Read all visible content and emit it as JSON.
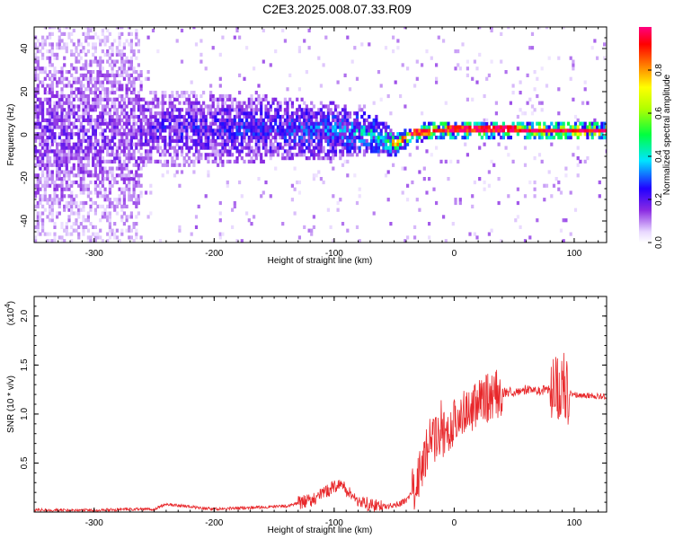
{
  "title": "C2E3.2025.008.07.33.R09",
  "chart_data": [
    {
      "type": "heatmap",
      "xlabel": "Height of straight line (km)",
      "ylabel": "Frequency (Hz)",
      "xlim": [
        -350,
        127
      ],
      "ylim": [
        -50,
        50
      ],
      "xticks": [
        -300,
        -200,
        -100,
        0,
        100
      ],
      "yticks": [
        -40,
        -20,
        0,
        20,
        40
      ],
      "colorbar": {
        "label": "Normalized spectral amplitude",
        "range": [
          0,
          1
        ],
        "ticks": [
          "0.0",
          "0.2",
          "0.4",
          "0.6",
          "0.8"
        ],
        "tick_values": [
          0,
          0.2,
          0.4,
          0.6,
          0.8
        ],
        "stops": [
          {
            "v": 0.0,
            "color": "#ffffff"
          },
          {
            "v": 0.05,
            "color": "#e8d8ff"
          },
          {
            "v": 0.15,
            "color": "#8a2be2"
          },
          {
            "v": 0.25,
            "color": "#2200ff"
          },
          {
            "v": 0.38,
            "color": "#00e5ff"
          },
          {
            "v": 0.5,
            "color": "#00ff40"
          },
          {
            "v": 0.62,
            "color": "#b0ff00"
          },
          {
            "v": 0.72,
            "color": "#ffff00"
          },
          {
            "v": 0.82,
            "color": "#ff8000"
          },
          {
            "v": 0.92,
            "color": "#ff0000"
          },
          {
            "v": 1.0,
            "color": "#ff0080"
          }
        ]
      },
      "ridge_profile": [
        {
          "x": -350,
          "center_hz": 0,
          "spread_hz": 50,
          "density": 0.85,
          "amp": 0.16
        },
        {
          "x": -265,
          "center_hz": 0,
          "spread_hz": 50,
          "density": 0.7,
          "amp": 0.15
        },
        {
          "x": -260,
          "center_hz": 2,
          "spread_hz": 18,
          "density": 0.9,
          "amp": 0.2
        },
        {
          "x": -150,
          "center_hz": 2,
          "spread_hz": 15,
          "density": 0.95,
          "amp": 0.26
        },
        {
          "x": -100,
          "center_hz": 1,
          "spread_hz": 13,
          "density": 0.95,
          "amp": 0.3
        },
        {
          "x": -70,
          "center_hz": 0,
          "spread_hz": 10,
          "density": 0.95,
          "amp": 0.38
        },
        {
          "x": -50,
          "center_hz": -5,
          "spread_hz": 5,
          "density": 1.0,
          "amp": 0.5
        },
        {
          "x": -35,
          "center_hz": 0,
          "spread_hz": 4,
          "density": 1.0,
          "amp": 0.62
        },
        {
          "x": 0,
          "center_hz": 2,
          "spread_hz": 4,
          "density": 1.0,
          "amp": 0.68
        },
        {
          "x": 127,
          "center_hz": 1,
          "spread_hz": 4,
          "density": 1.0,
          "amp": 0.7
        }
      ]
    },
    {
      "type": "line",
      "xlabel": "Height of straight line (km)",
      "ylabel": "SNR (10 * v/v)",
      "scale_label": "(x10",
      "scale_exp": "4",
      "xlim": [
        -350,
        127
      ],
      "ylim": [
        0,
        2.2
      ],
      "xticks": [
        -300,
        -200,
        -100,
        0,
        100
      ],
      "yticks": [
        0.5,
        1.0,
        1.5,
        2.0
      ],
      "ytick_labels": [
        "0.5",
        "1.0",
        "1.5",
        "2.0"
      ],
      "series": [
        {
          "color": "#e8282b",
          "x": [
            -350,
            -300,
            -250,
            -240,
            -200,
            -160,
            -140,
            -120,
            -110,
            -100,
            -95,
            -90,
            -80,
            -70,
            -60,
            -50,
            -45,
            -40,
            -35,
            -30,
            -25,
            -20,
            -10,
            0,
            10,
            20,
            30,
            40,
            50,
            60,
            70,
            80,
            85,
            88,
            90,
            92,
            95,
            100,
            110,
            127
          ],
          "y": [
            0.02,
            0.02,
            0.03,
            0.08,
            0.03,
            0.05,
            0.06,
            0.12,
            0.18,
            0.26,
            0.3,
            0.22,
            0.12,
            0.07,
            0.05,
            0.07,
            0.09,
            0.12,
            0.2,
            0.35,
            0.55,
            0.72,
            0.8,
            0.92,
            1.03,
            1.12,
            1.18,
            1.22,
            1.23,
            1.25,
            1.24,
            1.25,
            1.26,
            1.3,
            1.32,
            1.28,
            1.22,
            1.2,
            1.19,
            1.18
          ]
        }
      ]
    }
  ]
}
